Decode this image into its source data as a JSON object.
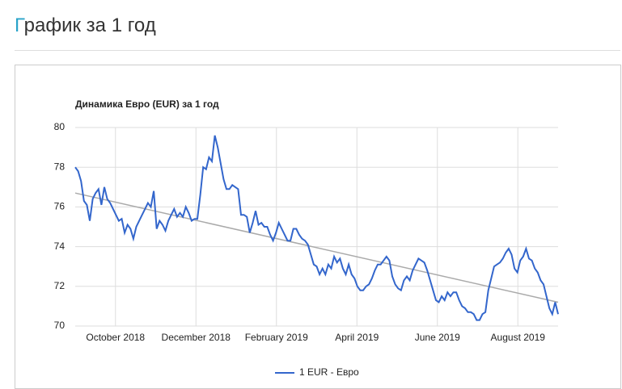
{
  "header": {
    "title": "График за 1 год"
  },
  "chart_data": {
    "type": "line",
    "title": "Динамика Евро (EUR) за 1 год",
    "xlim": [
      "2018-09",
      "2019-09"
    ],
    "xticks": [
      {
        "value": "2018-10",
        "label": "October 2018"
      },
      {
        "value": "2018-12",
        "label": "December 2018"
      },
      {
        "value": "2019-02",
        "label": "February 2019"
      },
      {
        "value": "2019-04",
        "label": "April 2019"
      },
      {
        "value": "2019-06",
        "label": "June 2019"
      },
      {
        "value": "2019-08",
        "label": "August 2019"
      }
    ],
    "ylim": [
      70,
      80
    ],
    "yticks": [
      70,
      72,
      74,
      76,
      78,
      80
    ],
    "grid": true,
    "legend": "bottom",
    "series": [
      {
        "name": "1 EUR - Евро",
        "color": "#3366cc",
        "values": [
          78.0,
          77.8,
          77.3,
          76.3,
          76.1,
          75.3,
          76.4,
          76.7,
          76.9,
          76.1,
          77.0,
          76.4,
          76.2,
          75.9,
          75.6,
          75.3,
          75.4,
          74.7,
          75.1,
          74.9,
          74.4,
          75.0,
          75.3,
          75.6,
          75.9,
          76.2,
          76.0,
          76.8,
          74.9,
          75.3,
          75.1,
          74.8,
          75.3,
          75.6,
          75.9,
          75.5,
          75.7,
          75.5,
          76.0,
          75.7,
          75.3,
          75.4,
          75.4,
          76.6,
          78.0,
          77.9,
          78.5,
          78.3,
          79.6,
          79.0,
          78.2,
          77.4,
          76.9,
          76.9,
          77.1,
          77.0,
          76.9,
          75.6,
          75.6,
          75.5,
          74.7,
          75.2,
          75.8,
          75.1,
          75.2,
          75.0,
          75.0,
          74.6,
          74.3,
          74.7,
          75.2,
          74.9,
          74.6,
          74.3,
          74.3,
          74.9,
          74.9,
          74.6,
          74.4,
          74.3,
          74.1,
          73.6,
          73.1,
          73.0,
          72.6,
          72.9,
          72.6,
          73.1,
          72.9,
          73.5,
          73.2,
          73.4,
          72.9,
          72.6,
          73.1,
          72.6,
          72.4,
          72.0,
          71.8,
          71.8,
          72.0,
          72.1,
          72.4,
          72.8,
          73.1,
          73.1,
          73.3,
          73.5,
          73.3,
          72.5,
          72.1,
          71.9,
          71.8,
          72.3,
          72.5,
          72.3,
          72.8,
          73.1,
          73.4,
          73.3,
          73.2,
          72.8,
          72.3,
          71.8,
          71.3,
          71.2,
          71.5,
          71.3,
          71.7,
          71.5,
          71.7,
          71.7,
          71.3,
          71.0,
          70.9,
          70.7,
          70.7,
          70.6,
          70.3,
          70.3,
          70.6,
          70.7,
          71.8,
          72.4,
          73.0,
          73.1,
          73.2,
          73.4,
          73.7,
          73.9,
          73.6,
          72.9,
          72.7,
          73.3,
          73.5,
          73.9,
          73.4,
          73.3,
          72.9,
          72.7,
          72.3,
          72.1,
          71.5,
          70.9,
          70.6,
          71.2,
          70.6
        ]
      },
      {
        "color": "#aaaaaa",
        "values": [
          76.7,
          71.2
        ]
      }
    ]
  }
}
